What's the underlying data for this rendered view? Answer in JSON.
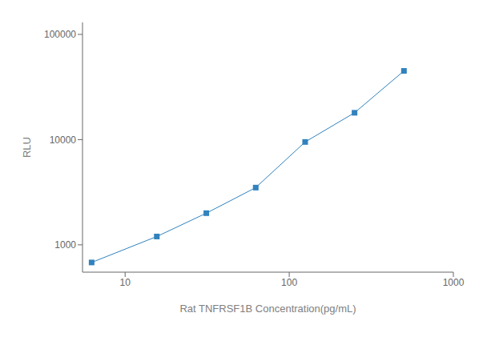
{
  "chart_data": {
    "type": "line",
    "x": [
      6.25,
      15.6,
      31.25,
      62.5,
      125,
      250,
      500
    ],
    "values": [
      680,
      1200,
      2000,
      3500,
      9500,
      18000,
      45000
    ],
    "xlabel": "Rat TNFRSF1B Concentration(pg/mL)",
    "ylabel": "RLU",
    "xlim": [
      5.5,
      1000
    ],
    "ylim": [
      550,
      130000
    ],
    "xticks": [
      10,
      100,
      1000
    ],
    "yticks": [
      1000,
      10000,
      100000
    ],
    "log": true,
    "grid": false,
    "marker": "square"
  }
}
